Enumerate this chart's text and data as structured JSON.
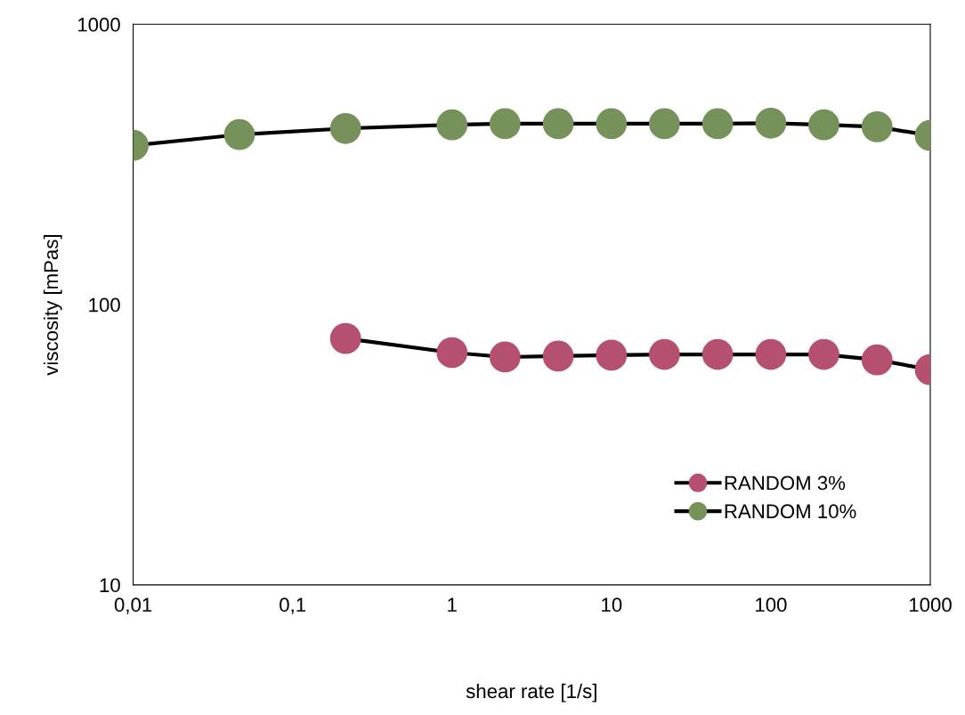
{
  "chart_data": {
    "type": "line",
    "xlabel": "shear rate [1/s]",
    "ylabel": "viscosity [mPas]",
    "log": "xy",
    "xlim": [
      0.01,
      1000
    ],
    "ylim": [
      10,
      1000
    ],
    "xticks": [
      {
        "value": 0.01,
        "label": "0,01"
      },
      {
        "value": 0.1,
        "label": "0,1"
      },
      1,
      10,
      100,
      1000
    ],
    "yticks": [
      10,
      100,
      1000
    ],
    "grid": false,
    "legend": "bottom right",
    "marker": "circle",
    "line_style": "solid",
    "series": [
      {
        "name": "RANDOM 3%",
        "color": "#b5506f",
        "x": [
          0.215,
          1,
          2.15,
          4.64,
          10,
          21.5,
          46.4,
          100,
          215,
          464,
          1000
        ],
        "values": [
          75.7,
          67.4,
          65.0,
          65.5,
          66.0,
          66.4,
          66.4,
          66.4,
          66.4,
          63.5,
          58.6
        ]
      },
      {
        "name": "RANDOM 10%",
        "color": "#76925a",
        "x": [
          0.01,
          0.0464,
          0.215,
          1,
          2.15,
          4.64,
          10,
          21.5,
          46.4,
          100,
          215,
          464,
          1000
        ],
        "values": [
          370,
          404,
          425,
          438,
          442,
          442,
          442,
          442,
          442,
          444,
          438,
          431,
          401
        ]
      }
    ]
  }
}
